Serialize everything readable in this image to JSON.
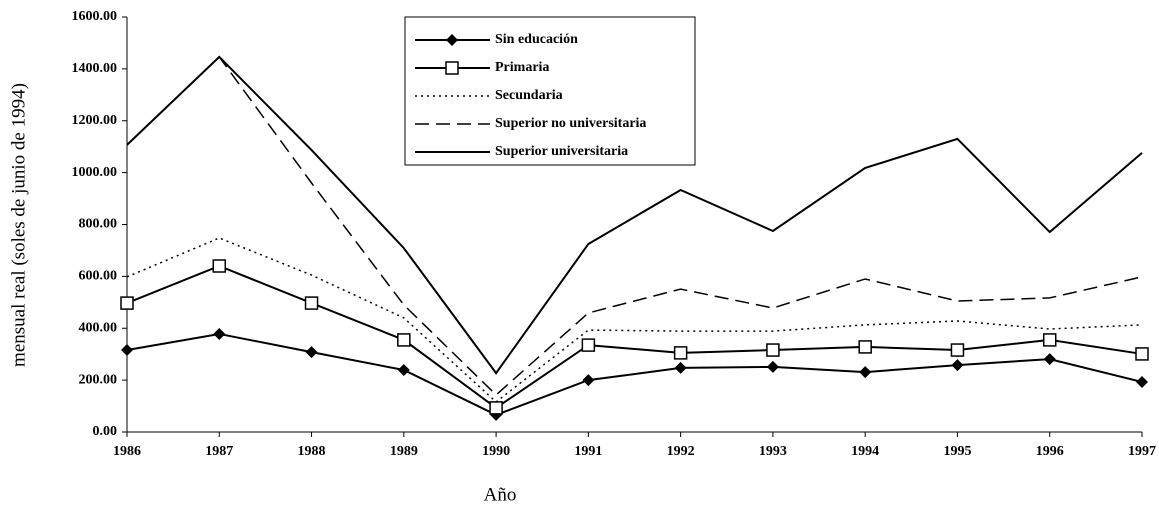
{
  "chart_data": {
    "type": "line",
    "y_label": "mensual real (soles de junio de 1994)",
    "x_label": "Año",
    "categories": [
      "1986",
      "1987",
      "1988",
      "1989",
      "1990",
      "1991",
      "1992",
      "1993",
      "1994",
      "1995",
      "1996",
      "1997"
    ],
    "ylim": [
      0,
      1600
    ],
    "yticks": [
      {
        "value": 0,
        "label": "0.00"
      },
      {
        "value": 200,
        "label": "200.00"
      },
      {
        "value": 400,
        "label": "400.00"
      },
      {
        "value": 600,
        "label": "600.00"
      },
      {
        "value": 800,
        "label": "800.00"
      },
      {
        "value": 1000,
        "label": "1000.00"
      },
      {
        "value": 1200,
        "label": "1200.00"
      },
      {
        "value": 1400,
        "label": "1400.00"
      },
      {
        "value": 1600,
        "label": "1600.00"
      }
    ],
    "series": [
      {
        "name": "Sin educación",
        "color": "#000000",
        "style": "solid",
        "marker": "diamond",
        "values": [
          316,
          378,
          308,
          239,
          66,
          200,
          247,
          251,
          231,
          258,
          281,
          193
        ]
      },
      {
        "name": "Primaria",
        "color": "#000000",
        "style": "solid",
        "marker": "square",
        "values": [
          497,
          640,
          497,
          355,
          93,
          335,
          305,
          316,
          328,
          316,
          355,
          301
        ]
      },
      {
        "name": "Secundaria",
        "color": "#000000",
        "style": "dotted",
        "marker": "none",
        "values": [
          598,
          748,
          605,
          440,
          116,
          393,
          389,
          389,
          413,
          428,
          397,
          413
        ]
      },
      {
        "name": "Superior no universitaria",
        "color": "#000000",
        "style": "dashed",
        "marker": "none",
        "values": [
          1107,
          1446,
          960,
          490,
          143,
          459,
          551,
          478,
          590,
          505,
          517,
          598
        ]
      },
      {
        "name": "Superior universitaria",
        "color": "#000000",
        "style": "solid",
        "marker": "none",
        "values": [
          1107,
          1446,
          1087,
          709,
          227,
          725,
          933,
          775,
          1018,
          1130,
          771,
          1076
        ]
      }
    ]
  }
}
